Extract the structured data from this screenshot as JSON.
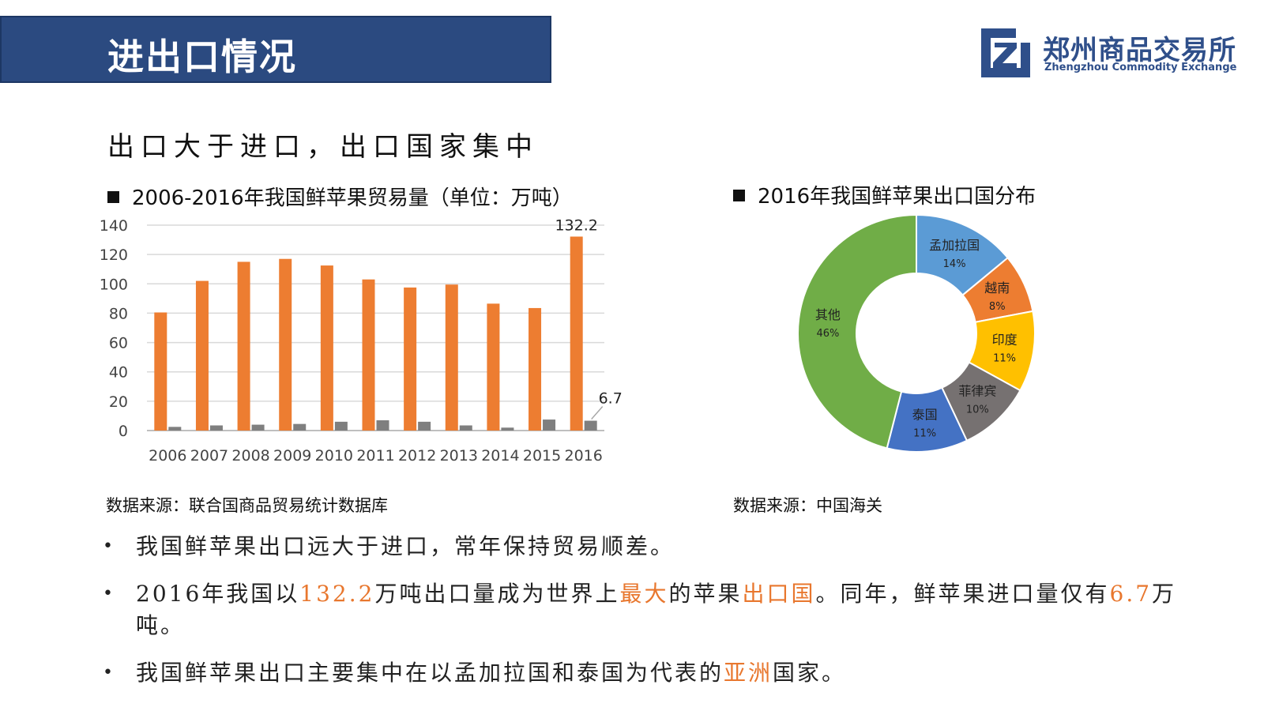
{
  "header": {
    "title": "进出口情况"
  },
  "logo": {
    "name_cn": "郑州商品交易所",
    "name_en": "Zhengzhou Commodity Exchange"
  },
  "subtitle": "出口大于进口，出口国家集中",
  "colors": {
    "export": "#ed7d31",
    "import": "#7f7f7f",
    "title_bar": "#2b4a80",
    "highlight": "#e8772e"
  },
  "left_chart": {
    "heading": "2006-2016年我国鲜苹果贸易量（单位：万吨）",
    "source": "数据来源：联合国商品贸易统计数据库"
  },
  "right_chart": {
    "heading": "2016年我国鲜苹果出口国分布",
    "source": "数据来源：中国海关"
  },
  "chart_data": [
    {
      "type": "bar",
      "title": "2006-2016年我国鲜苹果贸易量（单位：万吨）",
      "categories": [
        "2006",
        "2007",
        "2008",
        "2009",
        "2010",
        "2011",
        "2012",
        "2013",
        "2014",
        "2015",
        "2016"
      ],
      "series": [
        {
          "values": [
            80.5,
            102,
            115,
            117,
            112.5,
            103,
            97.5,
            99.5,
            86.5,
            83.5,
            132.2
          ]
        },
        {
          "values": [
            2.5,
            3.5,
            4,
            4.5,
            6,
            7,
            6,
            3.5,
            2,
            7.5,
            6.7
          ]
        }
      ],
      "data_labels": [
        "132.2",
        "6.7"
      ],
      "ylim": [
        0,
        140
      ],
      "yticks": [
        0,
        20,
        40,
        60,
        80,
        100,
        120,
        140
      ],
      "grid": true
    },
    {
      "type": "pie",
      "title": "2016年我国鲜苹果出口国分布",
      "slices": [
        {
          "label": "孟加拉国",
          "value": 14,
          "pct": "14%",
          "color": "#5b9bd5"
        },
        {
          "label": "越南",
          "value": 8,
          "pct": "8%",
          "color": "#ed7d31"
        },
        {
          "label": "印度",
          "value": 11,
          "pct": "11%",
          "color": "#ffc000"
        },
        {
          "label": "菲律宾",
          "value": 10,
          "pct": "10%",
          "color": "#767171"
        },
        {
          "label": "泰国",
          "value": 11,
          "pct": "11%",
          "color": "#4472c4"
        },
        {
          "label": "其他",
          "value": 46,
          "pct": "46%",
          "color": "#70ad47"
        }
      ]
    }
  ],
  "bullets": [
    {
      "parts": [
        {
          "text": "我国鲜苹果出口远大于进口，常年保持贸易顺差。",
          "hl": false
        }
      ]
    },
    {
      "parts": [
        {
          "text": "2016年我国以",
          "hl": false
        },
        {
          "text": "132.2",
          "hl": true
        },
        {
          "text": "万吨出口量成为世界上",
          "hl": false
        },
        {
          "text": "最大",
          "hl": true
        },
        {
          "text": "的苹果",
          "hl": false
        },
        {
          "text": "出口国",
          "hl": true
        },
        {
          "text": "。同年，鲜苹果进口量仅有",
          "hl": false
        },
        {
          "text": "6.7",
          "hl": true
        },
        {
          "text": "万吨。",
          "hl": false
        }
      ]
    },
    {
      "parts": [
        {
          "text": "我国鲜苹果出口主要集中在以孟加拉国和泰国为代表的",
          "hl": false
        },
        {
          "text": "亚洲",
          "hl": true
        },
        {
          "text": "国家。",
          "hl": false
        }
      ]
    }
  ]
}
